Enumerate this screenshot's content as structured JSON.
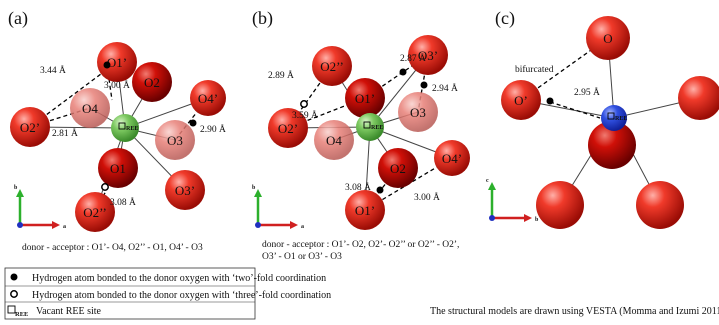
{
  "panels": [
    {
      "label": "(a)",
      "atoms": [
        "O1’",
        "O2",
        "O4’",
        "O4",
        "O3",
        "O2’",
        "O1",
        "O3’",
        "O2’’",
        "REE"
      ],
      "distances": [
        "3.44 Å",
        "3.00 Å",
        "2.81 Å",
        "2.90 Å",
        "3.08 Å"
      ],
      "axes": [
        "b",
        "a"
      ],
      "caption": [
        "donor - acceptor : O1’- O4, O2’’ - O1, O4’ - O3"
      ]
    },
    {
      "label": "(b)",
      "atoms": [
        "O2’’",
        "O3’",
        "O1’",
        "O3",
        "O2’",
        "O4",
        "O2",
        "O4’",
        "O1’",
        "REE"
      ],
      "distances": [
        "2.89 Å",
        "2.87 Å",
        "2.94 Å",
        "3.59 Å",
        "3.08 Å",
        "3.00 Å"
      ],
      "axes": [
        "b",
        "a"
      ],
      "caption": [
        "donor - acceptor : O1’- O2, O2’- O2’’ or O2’’ - O2’,",
        "O3’ - O1 or O3’ - O3"
      ]
    },
    {
      "label": "(c)",
      "atoms": [
        "O",
        "O’",
        "",
        "",
        "",
        "",
        "REE"
      ],
      "distances": [
        "bifurcated",
        "2.95 Å"
      ],
      "axes": [
        "c",
        "b"
      ],
      "caption": []
    }
  ],
  "legend": [
    "Hydrogen atom bonded to the donor oxygen with ‘two’-fold coordination",
    "Hydrogen atom bonded to the donor oxygen with ‘three’-fold coordination",
    "REE",
    "Vacant REE site"
  ],
  "credit": "The structural models are drawn using VESTA (Momma and Izumi 2011)"
}
